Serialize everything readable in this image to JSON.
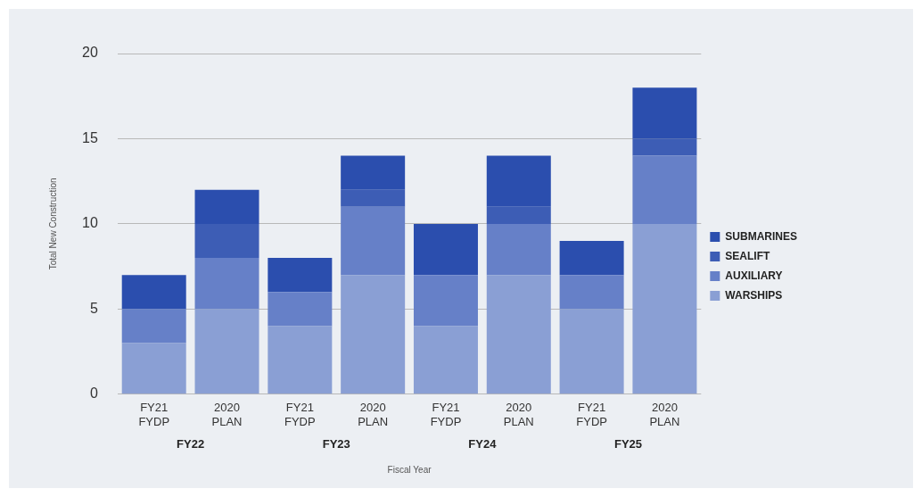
{
  "chart_data": {
    "type": "bar",
    "stacked": true,
    "xlabel": "Fiscal Year",
    "ylabel": "Total New Construction",
    "categories": [
      "FY21 FYDP",
      "2020 PLAN",
      "FY21 FYDP",
      "2020 PLAN",
      "FY21 FYDP",
      "2020 PLAN",
      "FY21 FYDP",
      "2020 PLAN"
    ],
    "annotations": [
      "FY22",
      "FY23",
      "FY24",
      "FY25"
    ],
    "series": [
      {
        "name": "WARSHIPS",
        "color": "#8a9fd4",
        "values": [
          3,
          5,
          4,
          7,
          4,
          7,
          5,
          10
        ]
      },
      {
        "name": "AUXILIARY",
        "color": "#6680c8",
        "values": [
          2,
          3,
          2,
          4,
          3,
          3,
          2,
          4
        ]
      },
      {
        "name": "SEALIFT",
        "color": "#3d5db5",
        "values": [
          0,
          2,
          0,
          1,
          0,
          1,
          0,
          1
        ]
      },
      {
        "name": "SUBMARINES",
        "color": "#2b4eae",
        "values": [
          2,
          2,
          2,
          2,
          3,
          3,
          2,
          3
        ]
      }
    ],
    "ylim": [
      0,
      20
    ],
    "yticks": [
      0,
      5,
      10,
      15,
      20
    ],
    "grid": "y",
    "legend": "right"
  }
}
